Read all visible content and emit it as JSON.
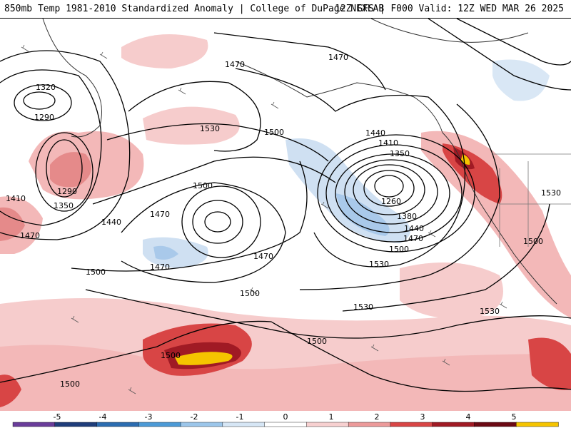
{
  "header": {
    "title": "850mb Temp 1981-2010 Standardized Anomaly | College of DuPage NEXLAB",
    "valid": "12Z GFS | F000 Valid: 12Z WED MAR 26 2025"
  },
  "contours": {
    "labels": [
      {
        "text": "1320",
        "ref": "nw-low-center"
      },
      {
        "text": "1290",
        "ref": "nw-low-ring"
      },
      {
        "text": "1290",
        "ref": "nw-low-south"
      },
      {
        "text": "1350",
        "ref": "nw-low-south"
      },
      {
        "text": "1410",
        "ref": "west-edge"
      },
      {
        "text": "1470",
        "ref": "west-edge"
      },
      {
        "text": "1470",
        "ref": "north-central"
      },
      {
        "text": "1530",
        "ref": "north-central"
      },
      {
        "text": "1500",
        "ref": "north-central"
      },
      {
        "text": "1500",
        "ref": "central"
      },
      {
        "text": "1470",
        "ref": "central-low"
      },
      {
        "text": "1440",
        "ref": "central-low"
      },
      {
        "text": "1470",
        "ref": "central-south"
      },
      {
        "text": "1470",
        "ref": "central-south"
      },
      {
        "text": "1500",
        "ref": "west-south"
      },
      {
        "text": "1500",
        "ref": "central-south"
      },
      {
        "text": "1470",
        "ref": "north-east"
      },
      {
        "text": "1440",
        "ref": "gulf-of-alaska-low"
      },
      {
        "text": "1410",
        "ref": "gulf-of-alaska-low"
      },
      {
        "text": "1350",
        "ref": "gulf-of-alaska-low"
      },
      {
        "text": "1260",
        "ref": "gulf-of-alaska-low-center"
      },
      {
        "text": "1380",
        "ref": "gulf-of-alaska-low"
      },
      {
        "text": "1440",
        "ref": "gulf-of-alaska-low"
      },
      {
        "text": "1470",
        "ref": "gulf-of-alaska-low"
      },
      {
        "text": "1500",
        "ref": "gulf-of-alaska-low"
      },
      {
        "text": "1530",
        "ref": "pacific"
      },
      {
        "text": "1530",
        "ref": "pacific"
      },
      {
        "text": "1530",
        "ref": "west-coast"
      },
      {
        "text": "1500",
        "ref": "west-coast"
      },
      {
        "text": "1530",
        "ref": "subtropics"
      },
      {
        "text": "1500",
        "ref": "subtropics"
      },
      {
        "text": "1500",
        "ref": "subtropics-west"
      },
      {
        "text": "1500",
        "ref": "southwest"
      }
    ]
  },
  "colorbar": {
    "ticks": [
      "-5",
      "-4",
      "-3",
      "-2",
      "-1",
      "0",
      "1",
      "2",
      "3",
      "4",
      "5"
    ],
    "colors": [
      "#6a3d9a",
      "#1f3d7a",
      "#2b6cb0",
      "#4c9ad6",
      "#9cc6ea",
      "#d6e6f5",
      "#ffffff",
      "#f7d0d0",
      "#ec9a9a",
      "#d84545",
      "#a01a24",
      "#6b0a14",
      "#f5c400"
    ]
  }
}
